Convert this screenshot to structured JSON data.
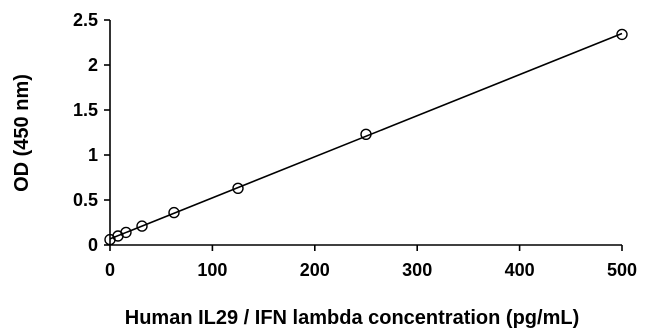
{
  "chart_data": {
    "type": "scatter",
    "title": "",
    "xlabel": "Human IL29 / IFN lambda concentration (pg/mL)",
    "ylabel": "OD (450 nm)",
    "xlim": [
      0,
      500
    ],
    "ylim": [
      0,
      2.5
    ],
    "x_ticks": [
      0,
      100,
      200,
      300,
      400,
      500
    ],
    "y_ticks": [
      0,
      0.5,
      1,
      1.5,
      2,
      2.5
    ],
    "y_tick_labels": [
      "0",
      "0.5",
      "1",
      "1.5",
      "2",
      "2.5"
    ],
    "grid": false,
    "legend": "none",
    "marker": "open-circle",
    "trendline": "linear",
    "series": [
      {
        "x": [
          0,
          7.8,
          15.6,
          31.25,
          62.5,
          125,
          250,
          500
        ],
        "y": [
          0.06,
          0.1,
          0.14,
          0.21,
          0.36,
          0.63,
          1.23,
          2.34
        ]
      }
    ]
  }
}
